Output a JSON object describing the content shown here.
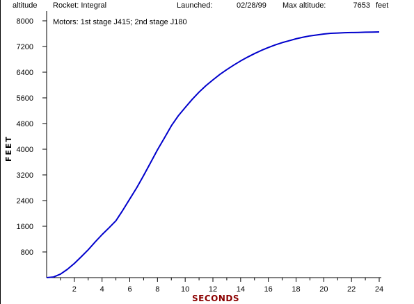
{
  "header": {
    "mode_label": "altitude",
    "rocket_label": "Rocket: Integral",
    "launched_label": "Launched:",
    "launch_date": "02/28/99",
    "max_alt_label": "Max altitude:",
    "max_alt_value": "7653",
    "max_alt_unit": "feet",
    "motors": "Motors:  1st stage J415; 2nd stage J180"
  },
  "colors": {
    "line": "#0000cc",
    "axis": "#000000",
    "xlabel": "#8b0000",
    "background": "#ffffff"
  },
  "chart_data": {
    "type": "line",
    "xlabel": "SECONDS",
    "ylabel": "FEET",
    "xlim": [
      0,
      24
    ],
    "ylim": [
      0,
      8000
    ],
    "xticks": [
      2,
      4,
      6,
      8,
      10,
      12,
      14,
      16,
      18,
      20,
      22,
      24
    ],
    "yticks": [
      800,
      1600,
      2400,
      3200,
      4000,
      4800,
      5600,
      6400,
      7200,
      8000
    ],
    "grid": false,
    "series": [
      {
        "x": [
          0,
          0.5,
          1,
          1.5,
          2,
          2.5,
          3,
          3.5,
          4,
          4.5,
          5,
          5.5,
          6,
          6.5,
          7,
          7.5,
          8,
          8.5,
          9,
          9.5,
          10,
          10.5,
          11,
          11.5,
          12,
          12.5,
          13,
          13.5,
          14,
          14.5,
          15,
          15.5,
          16,
          16.5,
          17,
          17.5,
          18,
          18.5,
          19,
          19.5,
          20,
          20.5,
          21,
          21.5,
          22,
          22.5,
          23,
          23.5,
          24
        ],
        "y": [
          0,
          20,
          110,
          260,
          440,
          650,
          870,
          1110,
          1340,
          1550,
          1770,
          2100,
          2450,
          2800,
          3180,
          3580,
          3980,
          4350,
          4730,
          5040,
          5300,
          5550,
          5780,
          5980,
          6160,
          6330,
          6480,
          6620,
          6750,
          6870,
          6980,
          7080,
          7170,
          7250,
          7320,
          7380,
          7440,
          7490,
          7530,
          7560,
          7590,
          7610,
          7620,
          7630,
          7635,
          7640,
          7645,
          7650,
          7653
        ]
      }
    ]
  }
}
